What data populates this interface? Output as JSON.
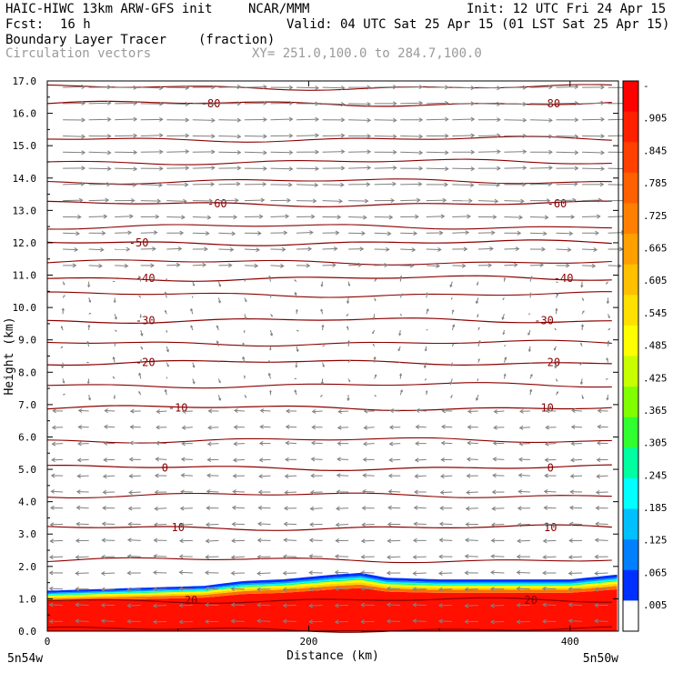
{
  "header": {
    "model": "HAIC-HIWC 13km ARW-GFS init",
    "org": "NCAR/MMM",
    "init": "Init: 12 UTC Fri 24 Apr 15",
    "fcst_label": "Fcst:",
    "fcst_value": "16 h",
    "valid": "Valid: 04 UTC Sat 25 Apr 15 (01 LST Sat 25 Apr 15)",
    "field": "Boundary Layer Tracer",
    "field_units": "(fraction)",
    "overlay": "Circulation vectors",
    "xy": "XY= 251.0,100.0 to 284.7,100.0"
  },
  "axes": {
    "ylabel": "Height (km)",
    "xlabel": "Distance (km)",
    "left_corner": "5n54w",
    "right_corner": "5n50w"
  },
  "chart_data": {
    "type": "heatmap",
    "title": "Boundary Layer Tracer",
    "units": "(fraction)",
    "xlabel": "Distance (km)",
    "ylabel": "Height (km)",
    "xlim": [
      0,
      437
    ],
    "ylim": [
      0,
      17
    ],
    "x_ticks": [
      0,
      200,
      400
    ],
    "x_tick_labels": [
      "0",
      "200",
      "400"
    ],
    "y_ticks": [
      0,
      1,
      2,
      3,
      4,
      5,
      6,
      7,
      8,
      9,
      10,
      11,
      12,
      13,
      14,
      15,
      16,
      17
    ],
    "y_tick_labels": [
      "0.0",
      "1.0",
      "2.0",
      "3.0",
      "4.0",
      "5.0",
      "6.0",
      "7.0",
      "8.0",
      "9.0",
      "10.0",
      "11.0",
      "12.0",
      "13.0",
      "14.0",
      "15.0",
      "16.0",
      "17.0"
    ],
    "colorbar_labels": [
      "-",
      ".905",
      ".845",
      ".785",
      ".725",
      ".665",
      ".605",
      ".545",
      ".485",
      ".425",
      ".365",
      ".305",
      ".245",
      ".185",
      ".125",
      ".065",
      ".005"
    ],
    "colorbar_colors": [
      "#ff0000",
      "#ff2000",
      "#ff4000",
      "#ff6000",
      "#ff8000",
      "#ffa000",
      "#ffc000",
      "#ffe000",
      "#ffff00",
      "#c8ff00",
      "#80ff00",
      "#30ff30",
      "#00ffa0",
      "#00ffff",
      "#00c0ff",
      "#0080ff",
      "#0030ff",
      "#ffffff"
    ],
    "boundary_layer_top_km": {
      "x": [
        0,
        40,
        80,
        120,
        150,
        180,
        220,
        240,
        260,
        300,
        350,
        400,
        437
      ],
      "y": [
        1.25,
        1.3,
        1.35,
        1.4,
        1.55,
        1.6,
        1.75,
        1.8,
        1.65,
        1.6,
        1.6,
        1.6,
        1.75
      ]
    },
    "temperature_contours": [
      {
        "label": "-80",
        "height_km": 16.3,
        "label_x": [
          125,
          385
        ]
      },
      {
        "label": "-60",
        "height_km": 13.2,
        "label_x": [
          130,
          390
        ]
      },
      {
        "label": "-50",
        "height_km": 12.0,
        "label_x": [
          70
        ]
      },
      {
        "label": "-40",
        "height_km": 10.9,
        "label_x": [
          75,
          395
        ]
      },
      {
        "label": "-30",
        "height_km": 9.6,
        "label_x": [
          75,
          380
        ]
      },
      {
        "label": "-20",
        "height_km": 8.3,
        "label_x": [
          75,
          385
        ]
      },
      {
        "label": "-10",
        "height_km": 6.9,
        "label_x": [
          100,
          380
        ]
      },
      {
        "label": "0",
        "height_km": 5.05,
        "label_x": [
          90,
          385
        ]
      },
      {
        "label": "10",
        "height_km": 3.2,
        "label_x": [
          100,
          385
        ]
      },
      {
        "label": "20",
        "height_km": 0.95,
        "label_x": [
          110,
          370
        ]
      }
    ],
    "unlabeled_contour_heights_km": [
      16.8,
      15.2,
      14.5,
      13.9,
      12.5,
      11.4,
      10.4,
      8.9,
      7.6,
      5.9,
      4.2,
      2.2,
      0.05
    ],
    "grid": false
  }
}
